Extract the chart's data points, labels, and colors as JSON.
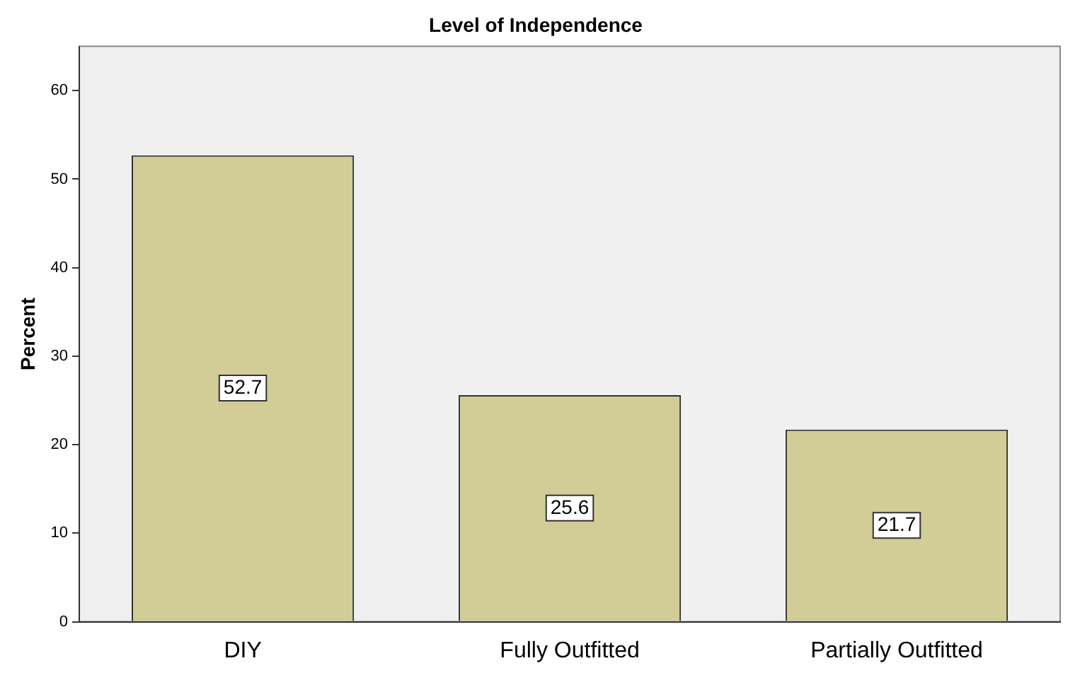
{
  "chart_data": {
    "type": "bar",
    "title": "Level of Independence",
    "ylabel": "Percent",
    "categories": [
      "DIY",
      "Fully Outfitted",
      "Partially Outfitted"
    ],
    "values": [
      52.7,
      25.6,
      21.7
    ],
    "color": "#d2cc96",
    "ylim": [
      0,
      65
    ],
    "yticks": [
      0,
      10,
      20,
      30,
      40,
      50,
      60
    ],
    "grid": false,
    "legend": false,
    "data_labels": true
  }
}
